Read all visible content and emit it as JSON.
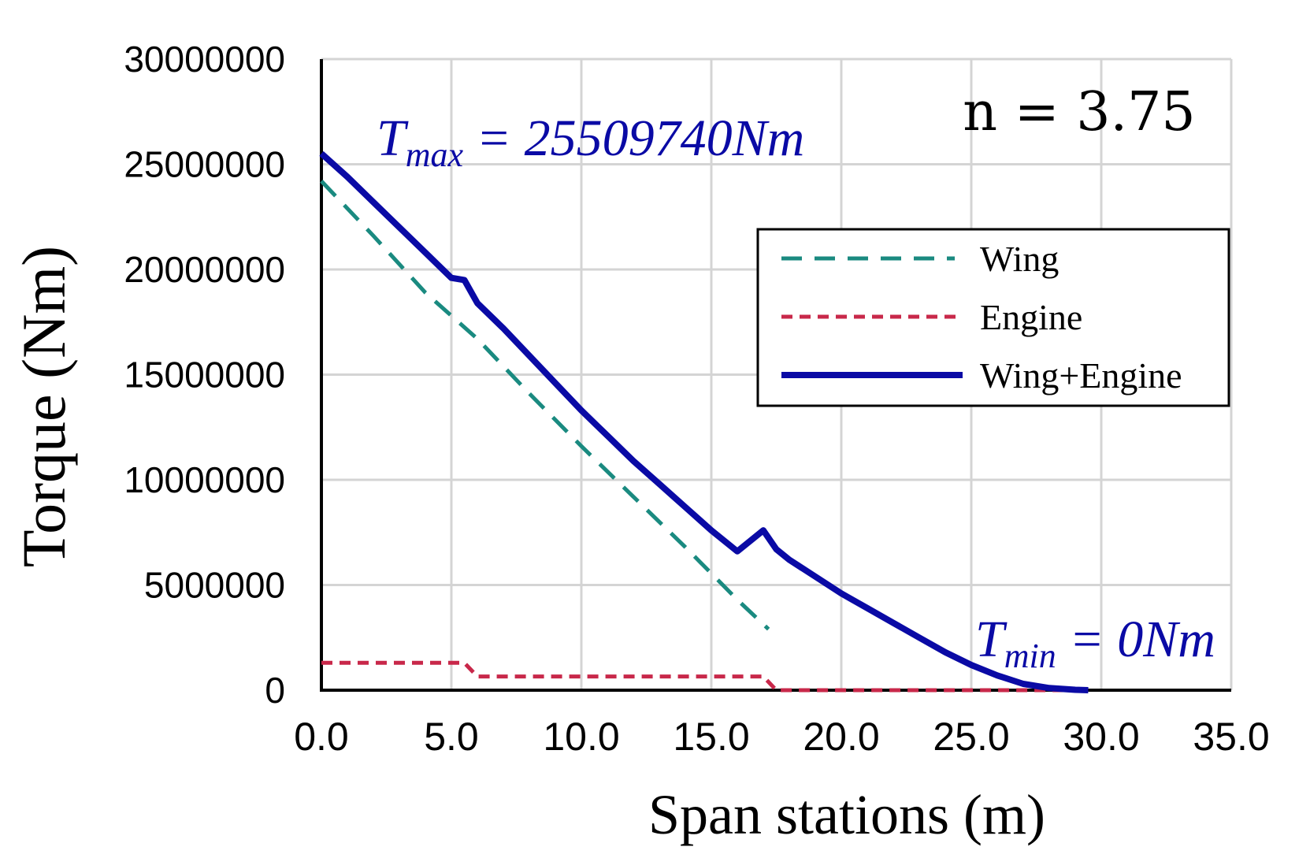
{
  "chart_data": {
    "type": "line",
    "xlabel": "Span stations (m)",
    "ylabel": "Torque (Nm)",
    "xlim": [
      0,
      35
    ],
    "ylim": [
      0,
      30000000
    ],
    "x_ticks": [
      "0.0",
      "5.0",
      "10.0",
      "15.0",
      "20.0",
      "25.0",
      "30.0",
      "35.0"
    ],
    "y_ticks": [
      "0",
      "5000000",
      "10000000",
      "15000000",
      "20000000",
      "25000000",
      "30000000"
    ],
    "grid": true,
    "legend_position": "upper-right",
    "annotations": {
      "n_label": "n = 3.75",
      "tmax_symbol": "T",
      "tmax_sub": "max",
      "tmax_value": " = 25509740Nm",
      "tmin_symbol": "T",
      "tmin_sub": "min",
      "tmin_value": " = 0Nm"
    },
    "series": [
      {
        "name": "Wing",
        "color": "#1a8a80",
        "style": "dashed",
        "x": [
          0,
          2,
          4,
          6,
          8,
          10,
          12,
          14,
          16,
          17.2
        ],
        "y": [
          24200000,
          21600000,
          18900000,
          16700000,
          14100000,
          11600000,
          9200000,
          6800000,
          4300000,
          2900000
        ]
      },
      {
        "name": "Engine",
        "color": "#c8284a",
        "style": "dotted",
        "x": [
          0,
          5.5,
          6,
          17,
          17.5,
          29.5
        ],
        "y": [
          1300000,
          1300000,
          650000,
          650000,
          0,
          0
        ]
      },
      {
        "name": "Wing+Engine",
        "color": "#0a0aa5",
        "style": "solid",
        "x": [
          0,
          1,
          2,
          3,
          4,
          5,
          5.5,
          6,
          7,
          8,
          9,
          10,
          11,
          12,
          13,
          14,
          15,
          16,
          17,
          17.5,
          18,
          19,
          20,
          21,
          22,
          23,
          24,
          25,
          26,
          27,
          28,
          29,
          29.5
        ],
        "y": [
          25509740,
          24400000,
          23200000,
          22000000,
          20800000,
          19600000,
          19500000,
          18400000,
          17200000,
          15900000,
          14600000,
          13300000,
          12100000,
          10900000,
          9800000,
          8700000,
          7600000,
          6600000,
          7600000,
          6700000,
          6200000,
          5400000,
          4600000,
          3900000,
          3200000,
          2500000,
          1800000,
          1200000,
          700000,
          300000,
          100000,
          20000,
          0
        ]
      }
    ]
  }
}
